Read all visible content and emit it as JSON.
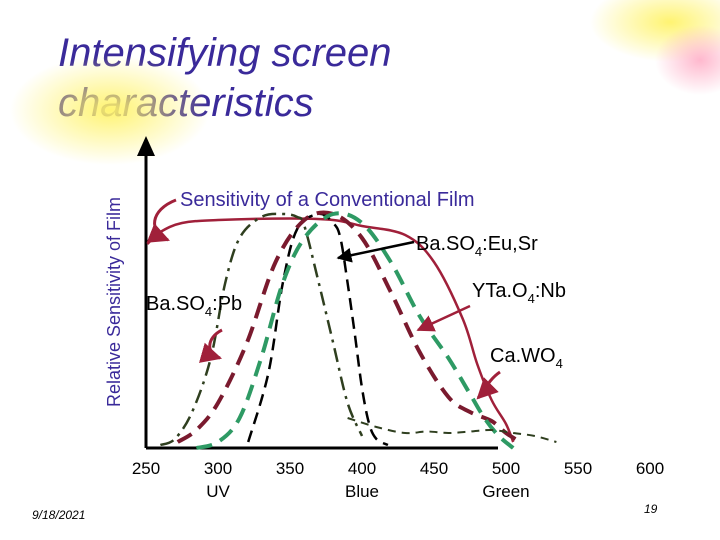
{
  "slide": {
    "title": "Intensifying screen characteristics",
    "footer_date": "9/18/2021",
    "footer_page": "19"
  },
  "colors": {
    "title": "#3a2a9a",
    "conventional_film": "#a0203a",
    "maroon": "#7a1a2e",
    "green": "#2e9a64",
    "dark_green": "#2f3f1f",
    "black": "#000000",
    "arrow": "#a0203a",
    "decor_yellow": "#fff36a",
    "decor_pink": "#ffb0c8"
  },
  "chart_data": {
    "type": "line",
    "ylabel": "Relative Sensitivity of Film",
    "xlabel": "",
    "xlim": [
      250,
      600
    ],
    "ylim": [
      0,
      100
    ],
    "x_ticks": [
      {
        "value": 250,
        "label": "250",
        "sublabel": ""
      },
      {
        "value": 300,
        "label": "300",
        "sublabel": "UV"
      },
      {
        "value": 350,
        "label": "350",
        "sublabel": ""
      },
      {
        "value": 400,
        "label": "400",
        "sublabel": "Blue"
      },
      {
        "value": 450,
        "label": "450",
        "sublabel": ""
      },
      {
        "value": 500,
        "label": "500",
        "sublabel": "Green"
      },
      {
        "value": 550,
        "label": "550",
        "sublabel": ""
      },
      {
        "value": 600,
        "label": "600",
        "sublabel": ""
      }
    ],
    "grid": false,
    "legend": "none",
    "series": [
      {
        "name": "Sensitivity of a Conventional Film",
        "style": "solid",
        "color_key": "conventional_film",
        "width": 2.5,
        "x": [
          251,
          260,
          275,
          300,
          350,
          380,
          400,
          430,
          450,
          470,
          480,
          490,
          500,
          505
        ],
        "y": [
          68,
          72,
          75,
          76,
          76.5,
          76,
          74,
          71,
          62,
          43,
          28,
          16,
          8,
          2
        ]
      },
      {
        "name": "Ba.SO4:Pb",
        "style": "dashdot",
        "color_key": "dark_green",
        "width": 2.5,
        "x": [
          260,
          270,
          282,
          295,
          305,
          315,
          330,
          345,
          355,
          360,
          370,
          380,
          390,
          400
        ],
        "y": [
          1,
          3,
          12,
          30,
          55,
          70,
          77,
          78,
          77,
          74,
          55,
          35,
          15,
          4
        ]
      },
      {
        "name": "Ba.SO4:Eu,Sr",
        "style": "shortdash",
        "color_key": "black",
        "width": 2.5,
        "x": [
          321,
          335,
          345,
          355,
          370,
          380,
          385,
          390,
          395,
          400,
          405,
          410,
          418
        ],
        "y": [
          2,
          25,
          55,
          73,
          78,
          75,
          70,
          55,
          38,
          20,
          8,
          3,
          1
        ]
      },
      {
        "name": "maroon broad band",
        "style": "longdash",
        "color_key": "maroon",
        "width": 4,
        "x": [
          272,
          285,
          300,
          320,
          340,
          360,
          380,
          400,
          420,
          440,
          460,
          475,
          490,
          500,
          510
        ],
        "y": [
          2,
          6,
          15,
          35,
          62,
          76,
          78,
          70,
          52,
          32,
          17,
          12,
          9,
          5,
          2
        ]
      },
      {
        "name": "green broad band",
        "style": "longdash",
        "color_key": "green",
        "width": 4,
        "x": [
          285,
          300,
          315,
          330,
          345,
          360,
          380,
          400,
          420,
          440,
          460,
          475,
          485,
          495,
          505
        ],
        "y": [
          0,
          2,
          10,
          30,
          55,
          70,
          78,
          75,
          62,
          44,
          30,
          18,
          10,
          4,
          0
        ]
      },
      {
        "name": "Ca.WO4",
        "style": "dashed",
        "color_key": "dark_green",
        "width": 2,
        "x": [
          390,
          410,
          430,
          445,
          460,
          475,
          490,
          505,
          520,
          535
        ],
        "y": [
          10,
          7,
          5,
          5.5,
          5,
          5.5,
          6,
          5,
          4,
          2
        ]
      }
    ],
    "annotations": [
      {
        "key": "conventional",
        "text": "Sensitivity of a Conventional Film",
        "sub": "",
        "tail": ""
      },
      {
        "key": "eusr",
        "text": "Ba.SO",
        "sub": "4",
        "tail": ":Eu,Sr"
      },
      {
        "key": "pb",
        "text": "Ba.SO",
        "sub": "4",
        "tail": ":Pb"
      },
      {
        "key": "ytao",
        "text": "YTa.O",
        "sub": "4",
        "tail": ":Nb"
      },
      {
        "key": "cawo",
        "text": "Ca.WO",
        "sub": "4",
        "tail": ""
      }
    ]
  }
}
